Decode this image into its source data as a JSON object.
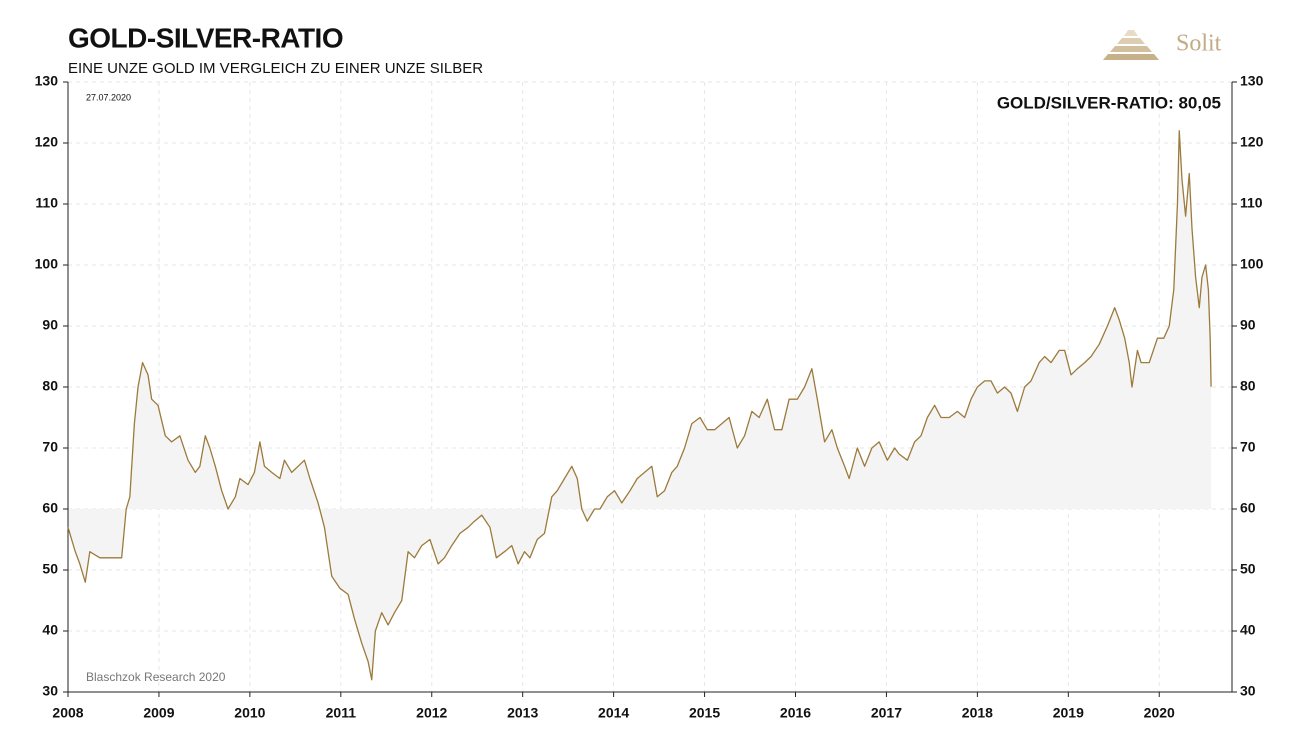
{
  "chart_data": {
    "type": "line",
    "title": "GOLD-SILVER-RATIO",
    "subtitle": "EINE UNZE GOLD IM VERGLEICH ZU EINER UNZE SILBER",
    "date_note": "27.07.2020",
    "annotation": "GOLD/SILVER-RATIO: 80,05",
    "source": "Blaschzok Research 2020",
    "logo": "Solit",
    "color": "#9c7a3c",
    "area_color": "#f4f4f4",
    "area_baseline": 60,
    "grid": true,
    "xlim": [
      2008,
      2020.8
    ],
    "xticks": [
      2008,
      2009,
      2010,
      2011,
      2012,
      2013,
      2014,
      2015,
      2016,
      2017,
      2018,
      2019,
      2020
    ],
    "ylim": [
      30,
      130
    ],
    "yticks": [
      30,
      40,
      50,
      60,
      70,
      80,
      90,
      100,
      110,
      120,
      130
    ],
    "y2lim": [
      30,
      130
    ],
    "y2ticks": [
      30,
      40,
      50,
      60,
      70,
      80,
      90,
      100,
      110,
      120,
      130
    ],
    "x": [
      2008.0,
      2008.08,
      2008.13,
      2008.19,
      2008.24,
      2008.35,
      2008.52,
      2008.59,
      2008.64,
      2008.68,
      2008.73,
      2008.77,
      2008.82,
      2008.88,
      2008.92,
      2008.99,
      2009.07,
      2009.14,
      2009.23,
      2009.32,
      2009.4,
      2009.45,
      2009.51,
      2009.56,
      2009.62,
      2009.69,
      2009.76,
      2009.84,
      2009.89,
      2009.98,
      2010.05,
      2010.11,
      2010.16,
      2010.24,
      2010.33,
      2010.38,
      2010.46,
      2010.53,
      2010.6,
      2010.66,
      2010.75,
      2010.82,
      2010.9,
      2010.99,
      2011.08,
      2011.15,
      2011.23,
      2011.3,
      2011.34,
      2011.38,
      2011.45,
      2011.52,
      2011.59,
      2011.67,
      2011.74,
      2011.81,
      2011.89,
      2011.98,
      2012.07,
      2012.14,
      2012.22,
      2012.31,
      2012.4,
      2012.47,
      2012.55,
      2012.64,
      2012.71,
      2012.8,
      2012.88,
      2012.95,
      2013.02,
      2013.08,
      2013.16,
      2013.24,
      2013.32,
      2013.38,
      2013.46,
      2013.54,
      2013.6,
      2013.65,
      2013.71,
      2013.79,
      2013.85,
      2013.93,
      2014.01,
      2014.09,
      2014.18,
      2014.26,
      2014.34,
      2014.42,
      2014.48,
      2014.56,
      2014.64,
      2014.7,
      2014.78,
      2014.86,
      2014.95,
      2015.03,
      2015.11,
      2015.19,
      2015.27,
      2015.36,
      2015.44,
      2015.52,
      2015.6,
      2015.69,
      2015.77,
      2015.85,
      2015.93,
      2016.02,
      2016.1,
      2016.18,
      2016.24,
      2016.32,
      2016.4,
      2016.46,
      2016.54,
      2016.59,
      2016.68,
      2016.76,
      2016.84,
      2016.92,
      2017.01,
      2017.09,
      2017.14,
      2017.23,
      2017.31,
      2017.38,
      2017.45,
      2017.53,
      2017.6,
      2017.69,
      2017.78,
      2017.86,
      2017.93,
      2018.0,
      2018.08,
      2018.15,
      2018.22,
      2018.3,
      2018.37,
      2018.44,
      2018.52,
      2018.59,
      2018.68,
      2018.74,
      2018.81,
      2018.9,
      2018.96,
      2019.03,
      2019.1,
      2019.18,
      2019.25,
      2019.34,
      2019.43,
      2019.51,
      2019.56,
      2019.62,
      2019.67,
      2019.7,
      2019.76,
      2019.8,
      2019.89,
      2019.98,
      2020.05,
      2020.11,
      2020.16,
      2020.2,
      2020.22,
      2020.25,
      2020.29,
      2020.33,
      2020.36,
      2020.4,
      2020.44,
      2020.47,
      2020.51,
      2020.54,
      2020.56,
      2020.57
    ],
    "values": [
      57,
      53,
      51,
      48,
      53,
      52,
      52,
      52,
      60,
      62,
      74,
      80,
      84,
      82,
      78,
      77,
      72,
      71,
      72,
      68,
      66,
      67,
      72,
      70,
      67,
      63,
      60,
      62,
      65,
      64,
      66,
      71,
      67,
      66,
      65,
      68,
      66,
      67,
      68,
      65,
      61,
      57,
      49,
      47,
      46,
      42,
      38,
      35,
      32,
      40,
      43,
      41,
      43,
      45,
      53,
      52,
      54,
      55,
      51,
      52,
      54,
      56,
      57,
      58,
      59,
      57,
      52,
      53,
      54,
      51,
      53,
      52,
      55,
      56,
      62,
      63,
      65,
      67,
      65,
      60,
      58,
      60,
      60,
      62,
      63,
      61,
      63,
      65,
      66,
      67,
      62,
      63,
      66,
      67,
      70,
      74,
      75,
      73,
      73,
      74,
      75,
      70,
      72,
      76,
      75,
      78,
      73,
      73,
      78,
      78,
      80,
      83,
      78,
      71,
      73,
      70,
      67,
      65,
      70,
      67,
      70,
      71,
      68,
      70,
      69,
      68,
      71,
      72,
      75,
      77,
      75,
      75,
      76,
      75,
      78,
      80,
      81,
      81,
      79,
      80,
      79,
      76,
      80,
      81,
      84,
      85,
      84,
      86,
      86,
      82,
      83,
      84,
      85,
      87,
      90,
      93,
      91,
      88,
      84,
      80,
      86,
      84,
      84,
      88,
      88,
      90,
      96,
      110,
      122,
      114,
      108,
      115,
      106,
      98,
      93,
      98,
      100,
      96,
      88,
      80.05
    ]
  }
}
